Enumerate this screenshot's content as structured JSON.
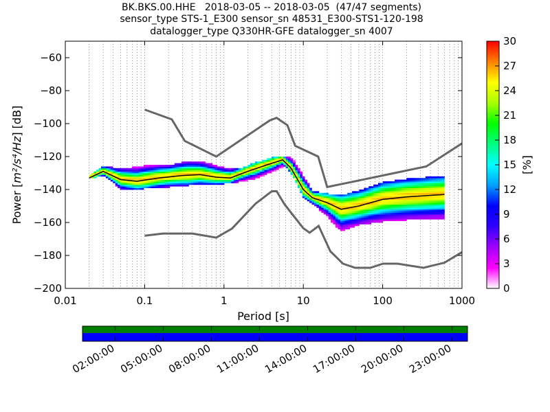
{
  "title_lines": [
    "BK.BKS.00.HHE   2018-03-05 -- 2018-03-05  (47/47 segments)",
    "sensor_type STS-1_E300 sensor_sn 48531_E300-STS1-120-198",
    "datalogger_type Q330HR-GFE datalogger_sn 4007"
  ],
  "chart_data": {
    "type": "heatmap",
    "xlabel": "Period [s]",
    "ylabel_prefix": "Power [",
    "ylabel_math": "m²/s⁴/Hz",
    "ylabel_suffix": "] [dB]",
    "x_scale": "log",
    "xlim": [
      0.01,
      1000
    ],
    "ylim": [
      -200,
      -50
    ],
    "x_ticks": [
      0.01,
      0.1,
      1,
      10,
      100,
      1000
    ],
    "x_tick_labels": [
      "0.01",
      "0.1",
      "1",
      "10",
      "100",
      "1000"
    ],
    "y_ticks": [
      -200,
      -180,
      -160,
      -140,
      -120,
      -100,
      -80,
      -60
    ],
    "y_tick_labels": [
      "−200",
      "−180",
      "−160",
      "−140",
      "−120",
      "−100",
      "−80",
      "−60"
    ],
    "grid": "dotted vertical",
    "colorbar": {
      "label": "[%]",
      "range": [
        0,
        30
      ],
      "ticks": [
        0,
        3,
        6,
        9,
        12,
        15,
        18,
        21,
        24,
        27,
        30
      ],
      "colormap": [
        "#ffffff",
        "#ff00ff",
        "#a000ff",
        "#3000ff",
        "#0000ff",
        "#00a0ff",
        "#00ffff",
        "#00ff80",
        "#00ff00",
        "#aaff00",
        "#ffff00",
        "#ff8000",
        "#ff0000"
      ]
    },
    "high_noise_model": [
      [
        0.1,
        -91.5
      ],
      [
        0.22,
        -97.4
      ],
      [
        0.32,
        -110.5
      ],
      [
        0.8,
        -120
      ],
      [
        3.8,
        -98
      ],
      [
        4.6,
        -96.5
      ],
      [
        6.3,
        -101
      ],
      [
        7.9,
        -113.5
      ],
      [
        15.4,
        -120
      ],
      [
        20,
        -138.5
      ],
      [
        354.8,
        -126
      ],
      [
        1000,
        -112
      ]
    ],
    "low_noise_model": [
      [
        0.1,
        -168
      ],
      [
        0.17,
        -166.7
      ],
      [
        0.4,
        -166.7
      ],
      [
        0.8,
        -169.2
      ],
      [
        1.26,
        -163.7
      ],
      [
        2.5,
        -148.6
      ],
      [
        4,
        -141.1
      ],
      [
        4.6,
        -141
      ],
      [
        5.8,
        -149
      ],
      [
        10,
        -163.5
      ],
      [
        12,
        -166.2
      ],
      [
        15.6,
        -162.1
      ],
      [
        21.9,
        -177.5
      ],
      [
        31.6,
        -185
      ],
      [
        45,
        -187.5
      ],
      [
        70,
        -187.5
      ],
      [
        101,
        -185
      ],
      [
        154,
        -185
      ],
      [
        328,
        -187.5
      ],
      [
        600,
        -184.4
      ],
      [
        1000,
        -178
      ]
    ],
    "mode_curve": [
      [
        0.02,
        -133
      ],
      [
        0.03,
        -129
      ],
      [
        0.05,
        -134
      ],
      [
        0.08,
        -135
      ],
      [
        0.15,
        -133
      ],
      [
        0.3,
        -131.5
      ],
      [
        0.5,
        -131
      ],
      [
        0.8,
        -132.5
      ],
      [
        1.2,
        -133
      ],
      [
        2,
        -129
      ],
      [
        3.5,
        -125
      ],
      [
        5.5,
        -122
      ],
      [
        7,
        -127
      ],
      [
        10,
        -140
      ],
      [
        13,
        -145
      ],
      [
        20,
        -148
      ],
      [
        30,
        -152
      ],
      [
        50,
        -150
      ],
      [
        100,
        -146
      ],
      [
        200,
        -144.5
      ],
      [
        600,
        -143
      ]
    ],
    "series": [
      {
        "style": "thin",
        "band": [
          [
            0.02,
            -132,
            -134
          ],
          [
            0.03,
            -126,
            -132
          ],
          [
            0.05,
            -128,
            -140
          ],
          [
            0.1,
            -126,
            -140
          ],
          [
            0.2,
            -126,
            -139
          ],
          [
            0.35,
            -123,
            -138
          ],
          [
            0.6,
            -124,
            -137
          ],
          [
            1,
            -127,
            -137
          ],
          [
            1.5,
            -128,
            -136
          ],
          [
            2.5,
            -124,
            -134
          ],
          [
            4,
            -121,
            -130
          ],
          [
            6,
            -120,
            -126
          ],
          [
            7.5,
            -122,
            -133
          ],
          [
            10,
            -132,
            -145
          ],
          [
            13,
            -141,
            -149
          ],
          [
            20,
            -143,
            -157
          ],
          [
            30,
            -144,
            -166
          ],
          [
            50,
            -141,
            -162
          ],
          [
            100,
            -136,
            -160
          ],
          [
            200,
            -134,
            -159
          ],
          [
            600,
            -132,
            -158
          ]
        ]
      }
    ],
    "time_bar_labels": [
      "02:00:00",
      "05:00:00",
      "08:00:00",
      "11:00:00",
      "14:00:00",
      "17:00:00",
      "20:00:00",
      "23:00:00"
    ],
    "time_bar_colors": {
      "top": "#008000",
      "bottom": "#0000ff"
    }
  }
}
